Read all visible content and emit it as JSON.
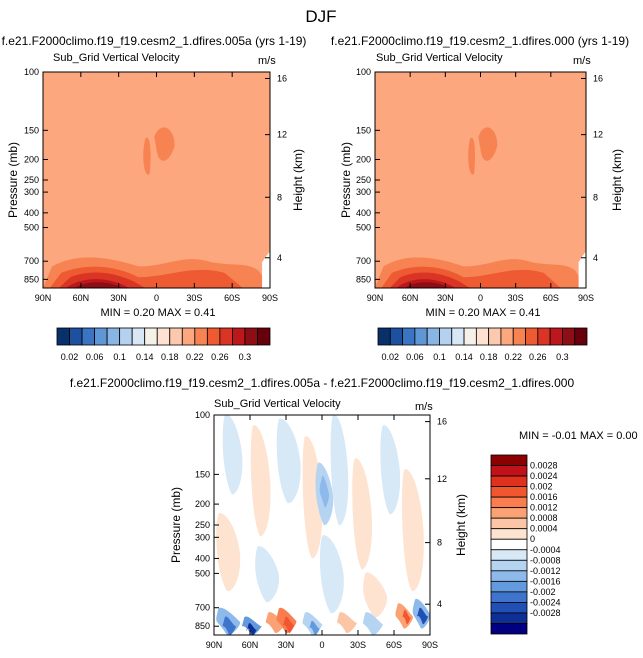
{
  "figure": {
    "title": "DJF",
    "colors": {
      "field": "#FCA77E",
      "frame": "#000000"
    }
  },
  "chart_data": [
    {
      "type": "heatmap",
      "title": "f.e21.F2000climo.f19_f19.cesm2_1.dfires.005a (yrs 1-19)",
      "subtitle": "Sub_Grid Vertical Velocity",
      "units": "m/s",
      "ylabel": "Pressure (mb)",
      "ylabel_right": "Height (km)",
      "x_ticks": [
        "90N",
        "60N",
        "30N",
        "0",
        "30S",
        "60S",
        "90S"
      ],
      "y_ticks": [
        "100",
        "150",
        "200",
        "250",
        "300",
        "400",
        "500",
        "700",
        "850"
      ],
      "y_ticks_right": [
        "16",
        "12",
        "8",
        "4"
      ],
      "ylim": [
        1000,
        100
      ],
      "stats": {
        "min_label": "MIN =",
        "min": "0.20",
        "max_label": "MAX =",
        "max": "0.41"
      },
      "colorbar": {
        "orientation": "horizontal",
        "labels": [
          "0.02",
          "0.06",
          "0.1",
          "0.14",
          "0.18",
          "0.22",
          "0.26",
          "0.3"
        ],
        "colors": [
          "#08306B",
          "#1E50A0",
          "#3A74C2",
          "#5E96D6",
          "#88B5E4",
          "#B4D2EF",
          "#D8E7F5",
          "#F6F1E8",
          "#FDE2D2",
          "#FCC8AE",
          "#FCA77E",
          "#F88352",
          "#EE5A32",
          "#DA3524",
          "#BB171C",
          "#8D0E14",
          "#67000D"
        ]
      }
    },
    {
      "type": "heatmap",
      "title": "f.e21.F2000climo.f19_f19.cesm2_1.dfires.000 (yrs 1-19)",
      "subtitle": "Sub_Grid Vertical Velocity",
      "units": "m/s",
      "ylabel": "Pressure (mb)",
      "ylabel_right": "Height (km)",
      "x_ticks": [
        "90N",
        "60N",
        "30N",
        "0",
        "30S",
        "60S",
        "90S"
      ],
      "y_ticks": [
        "100",
        "150",
        "200",
        "250",
        "300",
        "400",
        "500",
        "700",
        "850"
      ],
      "y_ticks_right": [
        "16",
        "12",
        "8",
        "4"
      ],
      "ylim": [
        1000,
        100
      ],
      "stats": {
        "min_label": "MIN =",
        "min": "0.20",
        "max_label": "MAX =",
        "max": "0.41"
      },
      "colorbar": {
        "orientation": "horizontal",
        "labels": [
          "0.02",
          "0.06",
          "0.1",
          "0.14",
          "0.18",
          "0.22",
          "0.26",
          "0.3"
        ],
        "colors": [
          "#08306B",
          "#1E50A0",
          "#3A74C2",
          "#5E96D6",
          "#88B5E4",
          "#B4D2EF",
          "#D8E7F5",
          "#F6F1E8",
          "#FDE2D2",
          "#FCC8AE",
          "#FCA77E",
          "#F88352",
          "#EE5A32",
          "#DA3524",
          "#BB171C",
          "#8D0E14",
          "#67000D"
        ]
      }
    },
    {
      "type": "heatmap",
      "title": "f.e21.F2000climo.f19_f19.cesm2_1.dfires.005a - f.e21.F2000climo.f19_f19.cesm2_1.dfires.000",
      "subtitle": "Sub_Grid Vertical Velocity",
      "units": "m/s",
      "ylabel": "Pressure (mb)",
      "ylabel_right": "Height (km)",
      "x_ticks": [
        "90N",
        "60N",
        "30N",
        "0",
        "30S",
        "60S",
        "90S"
      ],
      "y_ticks": [
        "100",
        "150",
        "200",
        "250",
        "300",
        "400",
        "500",
        "700",
        "850"
      ],
      "y_ticks_right": [
        "16",
        "12",
        "8",
        "4"
      ],
      "ylim": [
        1000,
        100
      ],
      "stats": {
        "min_label": "MIN =",
        "min": "-0.01",
        "max_label": "MAX =",
        "max": "0.00"
      },
      "colorbar": {
        "orientation": "vertical",
        "labels": [
          "0.0028",
          "0.0024",
          "0.002",
          "0.0016",
          "0.0012",
          "0.0008",
          "0.0004",
          "0",
          "-0.0004",
          "-0.0008",
          "-0.0012",
          "-0.0016",
          "-0.002",
          "-0.0024",
          "-0.0028"
        ],
        "colors": [
          "#8B0000",
          "#C1121A",
          "#E0301E",
          "#F2562F",
          "#F97D4E",
          "#FBA275",
          "#FCC5A5",
          "#FDE3D0",
          "#FFFFFF",
          "#D7E8F7",
          "#B4D4F2",
          "#8DBAEA",
          "#6399DD",
          "#3E74CC",
          "#2050B5",
          "#0E2F96",
          "#000080"
        ]
      }
    }
  ]
}
